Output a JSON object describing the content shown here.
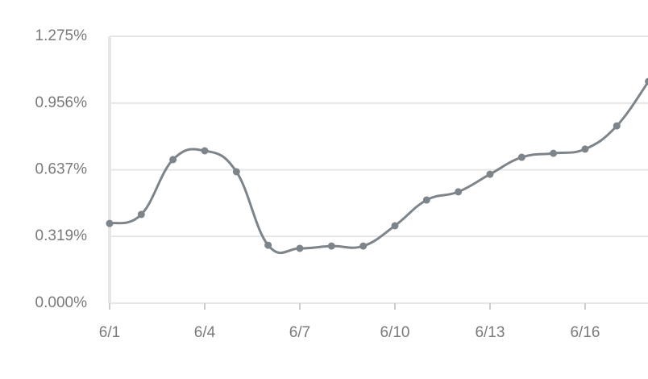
{
  "chart_data": {
    "type": "line",
    "categories": [
      "6/1",
      null,
      null,
      "6/4",
      null,
      null,
      "6/7",
      null,
      null,
      "6/10",
      null,
      null,
      "6/13",
      null,
      null,
      "6/16",
      null,
      null
    ],
    "series": [
      {
        "color": "#7d858b",
        "values": [
          0.381,
          0.424,
          0.686,
          0.728,
          0.628,
          0.277,
          0.262,
          0.273,
          0.273,
          0.37,
          0.493,
          0.532,
          0.616,
          0.697,
          0.716,
          0.736,
          0.847,
          1.059
        ]
      }
    ],
    "ylim": [
      0,
      1.275
    ],
    "yticks": [
      {
        "value": 0,
        "label": "0.000%"
      },
      {
        "value": 0.319,
        "label": "0.319%"
      },
      {
        "value": 0.637,
        "label": "0.637%"
      },
      {
        "value": 0.956,
        "label": "0.956%"
      },
      {
        "value": 1.275,
        "label": "1.275%"
      }
    ],
    "grid": true
  }
}
